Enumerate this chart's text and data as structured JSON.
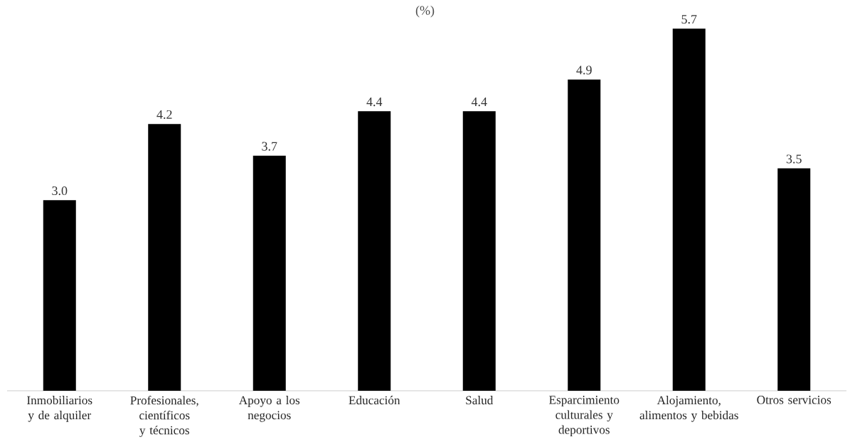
{
  "chart_data": {
    "type": "bar",
    "title": "(%)",
    "categories": [
      "Inmobiliarios y de alquiler",
      "Profesionales, científicos y técnicos",
      "Apoyo a los negocios",
      "Educación",
      "Salud",
      "Esparcimiento culturales y deportivos",
      "Alojamiento, alimentos y bebidas",
      "Otros servicios"
    ],
    "values": [
      3.0,
      4.2,
      3.7,
      4.4,
      4.4,
      4.9,
      5.7,
      3.5
    ],
    "value_labels": [
      "3.0",
      "4.2",
      "3.7",
      "4.4",
      "4.4",
      "4.9",
      "5.7",
      "3.5"
    ],
    "color": "#000000"
  }
}
